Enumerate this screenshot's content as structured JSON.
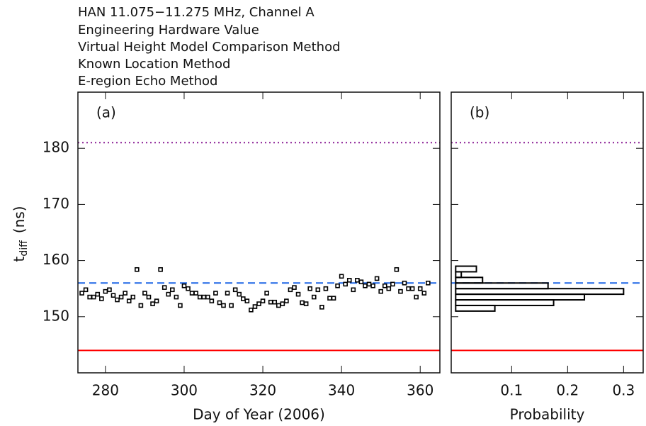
{
  "chart_data": [
    {
      "type": "scatter",
      "title": "HAN 11.075−11.275 MHz, Channel A",
      "panel_label": "(a)",
      "xlabel": "Day of Year (2006)",
      "ylabel": "t",
      "ylabel_sub": "diff",
      "ylabel_unit": "(ns)",
      "xlim": [
        273,
        365
      ],
      "xticks": [
        280,
        300,
        320,
        340,
        360
      ],
      "ylim": [
        140,
        190
      ],
      "yticks": [
        150,
        160,
        170,
        180
      ],
      "reference_lines": [
        {
          "name": "Engineering Hardware Value",
          "value": 181,
          "color": "#8b1f96",
          "style": "dotted"
        },
        {
          "name": "Virtual Height Model Comparison Method",
          "value": 144,
          "color": "#ff0000",
          "style": "solid"
        },
        {
          "name": "Known Location Method",
          "value": 156,
          "color": "#1f66e5",
          "style": "dashed"
        }
      ],
      "series": [
        {
          "name": "E-region Echo Method",
          "color": "#000000",
          "x": [
            274,
            275,
            276,
            277,
            278,
            279,
            280,
            281,
            282,
            283,
            284,
            285,
            286,
            287,
            288,
            289,
            290,
            291,
            292,
            293,
            294,
            295,
            296,
            297,
            298,
            299,
            300,
            301,
            302,
            303,
            304,
            305,
            306,
            307,
            308,
            309,
            310,
            311,
            312,
            313,
            314,
            315,
            316,
            317,
            318,
            319,
            320,
            321,
            322,
            323,
            324,
            325,
            326,
            327,
            328,
            329,
            330,
            331,
            332,
            333,
            334,
            335,
            336,
            337,
            338,
            339,
            340,
            341,
            342,
            343,
            344,
            345,
            346,
            347,
            348,
            349,
            350,
            351,
            352,
            353,
            354,
            355,
            356,
            357,
            358,
            359,
            360,
            361,
            362
          ],
          "values": [
            154.2,
            154.8,
            153.5,
            153.5,
            154.0,
            153.2,
            154.5,
            154.8,
            153.8,
            153.0,
            153.5,
            154.2,
            152.8,
            153.5,
            158.4,
            152.0,
            154.2,
            153.5,
            152.3,
            152.8,
            158.4,
            155.2,
            154.0,
            154.8,
            153.5,
            152.0,
            155.5,
            155.0,
            154.2,
            154.2,
            153.5,
            153.5,
            153.5,
            152.8,
            154.2,
            152.5,
            152.0,
            154.2,
            152.0,
            154.8,
            154.0,
            153.2,
            152.8,
            151.2,
            151.8,
            152.3,
            152.8,
            154.2,
            152.6,
            152.6,
            152.0,
            152.3,
            152.8,
            154.8,
            155.2,
            154.0,
            152.5,
            152.3,
            155.0,
            153.5,
            154.8,
            151.7,
            155.0,
            153.3,
            153.3,
            155.5,
            157.2,
            155.8,
            156.5,
            154.8,
            156.5,
            156.2,
            155.5,
            155.8,
            155.5,
            156.8,
            154.5,
            155.5,
            155.0,
            155.8,
            158.4,
            154.5,
            156.0,
            155.0,
            155.0,
            153.5,
            155.0,
            154.2,
            156.0
          ]
        }
      ]
    },
    {
      "type": "histogram",
      "panel_label": "(b)",
      "xlabel": "Probability",
      "xlim": [
        -0.008,
        0.335
      ],
      "xticks": [
        0.1,
        0.2,
        0.3
      ],
      "ylim": [
        140,
        190
      ],
      "yticks": [
        150,
        160,
        170,
        180
      ],
      "color": "#000000",
      "bins": [
        151,
        152,
        153,
        154,
        155,
        156,
        157,
        158,
        159
      ],
      "values": [
        0.07,
        0.175,
        0.23,
        0.3,
        0.165,
        0.048,
        0.01,
        0.037
      ]
    }
  ]
}
